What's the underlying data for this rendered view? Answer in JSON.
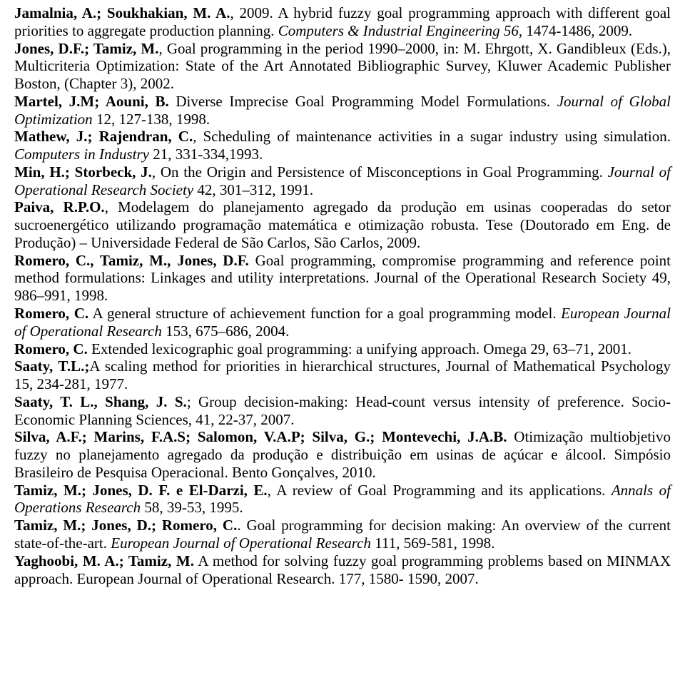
{
  "references": [
    {
      "authors_bold": "Jamalnia, A.; Soukhakian, M. A.",
      "year_plain": ", 2009. ",
      "title_plain": "A hybrid fuzzy goal programming approach with different goal priorities to aggregate production planning. ",
      "journal_italic": "Computers & Industrial Engineering 56",
      "tail_plain": ", 1474-1486, 2009."
    },
    {
      "authors_bold": "Jones, D.F.; Tamiz, M.",
      "year_plain": ", ",
      "title_plain": "Goal programming in the period 1990–2000, in: M. Ehrgott, X. Gandibleux (Eds.), Multicriteria Optimization: State of the Art Annotated Bibliographic Survey, Kluwer Academic Publisher Boston, (Chapter 3), 2002.",
      "journal_italic": "",
      "tail_plain": ""
    },
    {
      "authors_bold": "Martel, J.M; Aouni, B.",
      "year_plain": " ",
      "title_plain": "Diverse Imprecise Goal Programming Model Formulations. ",
      "journal_italic": "Journal of Global Optimization",
      "tail_plain": " 12, 127-138, 1998."
    },
    {
      "authors_bold": "Mathew, J.; Rajendran, C.",
      "year_plain": ", ",
      "title_plain": "Scheduling of maintenance activities in a sugar industry using simulation. ",
      "journal_italic": "Computers in Industry",
      "tail_plain": " 21, 331-334,1993."
    },
    {
      "authors_bold": "Min, H.; Storbeck, J.",
      "year_plain": ", ",
      "title_plain": "On the Origin and Persistence of Misconceptions in Goal  Programming. ",
      "journal_italic": "Journal of Operational Research Society",
      "tail_plain": " 42, 301–312, 1991."
    },
    {
      "authors_bold": "Paiva, R.P.O.",
      "year_plain": ", ",
      "title_plain": "Modelagem do planejamento agregado da produção em usinas cooperadas do setor sucroenergético utilizando programação matemática e otimização robusta. Tese (Doutorado em Eng. de Produção) – Universidade Federal de São Carlos, São Carlos, 2009.",
      "journal_italic": "",
      "tail_plain": ""
    },
    {
      "authors_bold": "Romero, C., Tamiz, M., Jones, D.F.",
      "year_plain": " ",
      "title_plain": "Goal programming, compromise programming and reference point method formulations: Linkages and utility interpretations. Journal of the Operational Research Society 49, 986–991, 1998.",
      "journal_italic": "",
      "tail_plain": ""
    },
    {
      "authors_bold": "Romero, C.",
      "year_plain": " ",
      "title_plain": "A general structure of achievement function for a goal programming model. ",
      "journal_italic": "European Journal of Operational Research",
      "tail_plain": " 153, 675–686, 2004."
    },
    {
      "authors_bold": "Romero, C.",
      "year_plain": " ",
      "title_plain": "Extended lexicographic goal programming: a unifying approach. Omega 29, 63–71, 2001.",
      "journal_italic": "",
      "tail_plain": ""
    },
    {
      "authors_bold": "Saaty, T.L.;",
      "year_plain": "",
      "title_plain": "A scaling method for priorities in hierarchical structures, Journal of Mathematical Psychology 15, 234-281, 1977.",
      "journal_italic": "",
      "tail_plain": ""
    },
    {
      "authors_bold": "Saaty, T. L., Shang, J. S.",
      "year_plain": "; ",
      "title_plain": "Group decision-making: Head-count versus intensity of preference. Socio-Economic Planning Sciences, 41, 22-37, 2007.",
      "journal_italic": "",
      "tail_plain": ""
    },
    {
      "authors_bold": "Silva, A.F.; Marins, F.A.S; Salomon, V.A.P; Silva, G.; Montevechi, J.A.B.",
      "year_plain": " ",
      "title_plain": "Otimização multiobjetivo fuzzy no planejamento agregado da produção e distribuição em usinas de açúcar e álcool. Simpósio Brasileiro de Pesquisa Operacional.  Bento Gonçalves, 2010.",
      "journal_italic": "",
      "tail_plain": ""
    },
    {
      "authors_bold": "Tamiz, M.; Jones, D. F. e El-Darzi, E.",
      "year_plain": ", ",
      "title_plain": "A review of Goal Programming and its applications. ",
      "journal_italic": "Annals of Operations Research",
      "tail_plain": " 58, 39-53, 1995."
    },
    {
      "authors_bold": "Tamiz, M.; Jones, D.;  Romero, C.",
      "year_plain": ". ",
      "title_plain": "Goal programming for decision making: An overview of the current state-of-the-art. ",
      "journal_italic": "European Journal of Operational Research",
      "tail_plain": " 111, 569-581, 1998."
    },
    {
      "authors_bold": "Yaghoobi, M. A.; Tamiz, M.",
      "year_plain": " ",
      "title_plain": "A method for solving fuzzy goal programming problems based on MINMAX approach. European Journal of Operational Research.  177, 1580- 1590, 2007.",
      "journal_italic": "",
      "tail_plain": ""
    }
  ]
}
